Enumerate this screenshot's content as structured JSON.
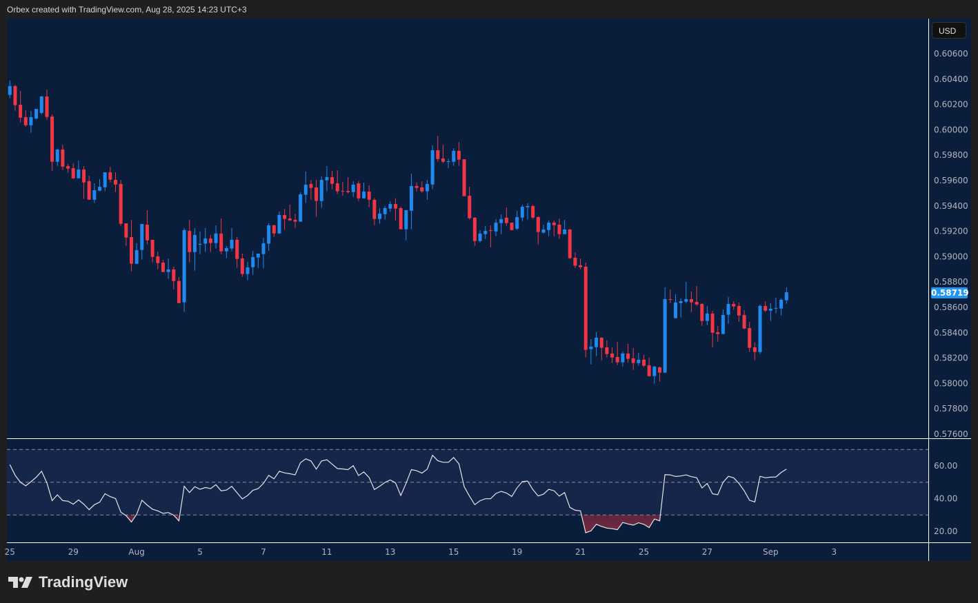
{
  "header": {
    "attribution": "Orbex created with TradingView.com, Aug 28, 2025 14:23 UTC+3"
  },
  "price_axis": {
    "currency": "USD",
    "ticks": [
      "0.60600",
      "0.60400",
      "0.60200",
      "0.60000",
      "0.59800",
      "0.59600",
      "0.59400",
      "0.59200",
      "0.59000",
      "0.58800",
      "0.58600",
      "0.58400",
      "0.58200",
      "0.58000",
      "0.57800",
      "0.57600"
    ],
    "current_price": "0.58719"
  },
  "rsi_axis": {
    "ticks": [
      "60.00",
      "40.00",
      "20.00"
    ]
  },
  "time_axis": {
    "labels": [
      "25",
      "29",
      "Aug",
      "5",
      "7",
      "11",
      "13",
      "15",
      "19",
      "21",
      "25",
      "27",
      "Sep",
      "3"
    ]
  },
  "logo": {
    "text": "TradingView"
  },
  "colors": {
    "up": "#2089ef",
    "down": "#f23645",
    "background": "#0a1e3b",
    "rsi_band": "#16264b",
    "rsi_line": "#e6e6e6",
    "current_price": "#2196f3"
  },
  "chart_data": [
    {
      "type": "candlestick",
      "ylim": [
        0.576,
        0.606
      ],
      "grid": false,
      "fields": [
        "open",
        "high",
        "low",
        "close"
      ],
      "candles": [
        [
          0.60276,
          0.6039,
          0.60248,
          0.60345
        ],
        [
          0.60345,
          0.60354,
          0.60151,
          0.60194
        ],
        [
          0.60198,
          0.60307,
          0.60058,
          0.60096
        ],
        [
          0.601,
          0.60154,
          0.60024,
          0.60036
        ],
        [
          0.60036,
          0.60149,
          0.59977,
          0.601
        ],
        [
          0.60089,
          0.60165,
          0.60084,
          0.60165
        ],
        [
          0.60133,
          0.60268,
          0.60123,
          0.60263
        ],
        [
          0.60263,
          0.60317,
          0.6008,
          0.60102
        ],
        [
          0.60105,
          0.60122,
          0.59678,
          0.59748
        ],
        [
          0.59748,
          0.5985,
          0.59716,
          0.59845
        ],
        [
          0.59845,
          0.59883,
          0.59683,
          0.5971
        ],
        [
          0.59714,
          0.5973,
          0.59661,
          0.59694
        ],
        [
          0.59698,
          0.59737,
          0.59612,
          0.59618
        ],
        [
          0.59618,
          0.59758,
          0.59616,
          0.59687
        ],
        [
          0.59687,
          0.59714,
          0.59455,
          0.59585
        ],
        [
          0.59595,
          0.59638,
          0.59447,
          0.59449
        ],
        [
          0.59449,
          0.59578,
          0.59422,
          0.59524
        ],
        [
          0.5952,
          0.59611,
          0.59515,
          0.59551
        ],
        [
          0.59547,
          0.59665,
          0.59515,
          0.59665
        ],
        [
          0.59665,
          0.59709,
          0.59585,
          0.59607
        ],
        [
          0.59605,
          0.59665,
          0.59509,
          0.59569
        ],
        [
          0.59573,
          0.59605,
          0.59243,
          0.59259
        ],
        [
          0.59263,
          0.59263,
          0.59085,
          0.59151
        ],
        [
          0.59154,
          0.5929,
          0.58884,
          0.58944
        ],
        [
          0.58944,
          0.59105,
          0.58942,
          0.59051
        ],
        [
          0.59053,
          0.59258,
          0.58977,
          0.59258
        ],
        [
          0.59252,
          0.59366,
          0.59096,
          0.59129
        ],
        [
          0.59133,
          0.59133,
          0.58955,
          0.58998
        ],
        [
          0.59002,
          0.5904,
          0.58901,
          0.58949
        ],
        [
          0.58953,
          0.58975,
          0.58877,
          0.58879
        ],
        [
          0.58879,
          0.58986,
          0.58825,
          0.58899
        ],
        [
          0.58899,
          0.58921,
          0.58743,
          0.58808
        ],
        [
          0.58808,
          0.58839,
          0.58632,
          0.58634
        ],
        [
          0.5864,
          0.59225,
          0.58564,
          0.59209
        ],
        [
          0.59203,
          0.5929,
          0.58955,
          0.59036
        ],
        [
          0.59036,
          0.59225,
          0.5889,
          0.59171
        ],
        [
          0.59097,
          0.59198,
          0.5902,
          0.591
        ],
        [
          0.59102,
          0.59225,
          0.59036,
          0.59143
        ],
        [
          0.59143,
          0.59171,
          0.59036,
          0.59107
        ],
        [
          0.59107,
          0.59247,
          0.59064,
          0.59182
        ],
        [
          0.59182,
          0.59301,
          0.5902,
          0.59042
        ],
        [
          0.59042,
          0.59084,
          0.58988,
          0.59067
        ],
        [
          0.59064,
          0.59225,
          0.59042,
          0.59133
        ],
        [
          0.59133,
          0.59154,
          0.58911,
          0.58982
        ],
        [
          0.58986,
          0.59024,
          0.58841,
          0.58863
        ],
        [
          0.58863,
          0.58959,
          0.58814,
          0.58915
        ],
        [
          0.58917,
          0.59046,
          0.58857,
          0.58997
        ],
        [
          0.58993,
          0.59024,
          0.58911,
          0.59024
        ],
        [
          0.5902,
          0.59149,
          0.58906,
          0.59105
        ],
        [
          0.59102,
          0.59263,
          0.59047,
          0.59247
        ],
        [
          0.59247,
          0.59252,
          0.59156,
          0.59183
        ],
        [
          0.59183,
          0.59355,
          0.59178,
          0.59328
        ],
        [
          0.59328,
          0.59377,
          0.5921,
          0.59297
        ],
        [
          0.59301,
          0.5941,
          0.59281,
          0.59286
        ],
        [
          0.5929,
          0.59339,
          0.59227,
          0.59276
        ],
        [
          0.59276,
          0.59508,
          0.59274,
          0.59491
        ],
        [
          0.59488,
          0.59671,
          0.59422,
          0.59567
        ],
        [
          0.59573,
          0.59605,
          0.59449,
          0.59542
        ],
        [
          0.59546,
          0.59605,
          0.59314,
          0.59439
        ],
        [
          0.59439,
          0.59633,
          0.59384,
          0.59605
        ],
        [
          0.59602,
          0.59714,
          0.59515,
          0.59627
        ],
        [
          0.59627,
          0.59676,
          0.59531,
          0.59574
        ],
        [
          0.59578,
          0.59681,
          0.59493,
          0.59515
        ],
        [
          0.59518,
          0.59589,
          0.59482,
          0.59515
        ],
        [
          0.59518,
          0.59627,
          0.59498,
          0.59509
        ],
        [
          0.59509,
          0.59595,
          0.59471,
          0.59567
        ],
        [
          0.59578,
          0.59595,
          0.59439,
          0.5946
        ],
        [
          0.5946,
          0.59584,
          0.59458,
          0.59513
        ],
        [
          0.59513,
          0.59562,
          0.5939,
          0.59449
        ],
        [
          0.59448,
          0.59464,
          0.59248,
          0.59297
        ],
        [
          0.59297,
          0.59383,
          0.59259,
          0.59339
        ],
        [
          0.59335,
          0.59399,
          0.59292,
          0.59383
        ],
        [
          0.59379,
          0.59437,
          0.59352,
          0.59415
        ],
        [
          0.59415,
          0.59459,
          0.59286,
          0.59379
        ],
        [
          0.59383,
          0.59393,
          0.59214,
          0.59216
        ],
        [
          0.59216,
          0.59366,
          0.59129,
          0.59366
        ],
        [
          0.59362,
          0.59654,
          0.59216,
          0.59557
        ],
        [
          0.59557,
          0.59584,
          0.59515,
          0.59542
        ],
        [
          0.59546,
          0.59595,
          0.59504,
          0.59515
        ],
        [
          0.59515,
          0.59605,
          0.59449,
          0.59573
        ],
        [
          0.59569,
          0.59877,
          0.59531,
          0.59839
        ],
        [
          0.59839,
          0.59953,
          0.59748,
          0.5977
        ],
        [
          0.59774,
          0.59883,
          0.59737,
          0.59748
        ],
        [
          0.59749,
          0.59774,
          0.59699,
          0.59752
        ],
        [
          0.59748,
          0.59855,
          0.59716,
          0.59834
        ],
        [
          0.59834,
          0.59904,
          0.59716,
          0.59765
        ],
        [
          0.59768,
          0.59768,
          0.59475,
          0.59477
        ],
        [
          0.5948,
          0.59551,
          0.59292,
          0.59303
        ],
        [
          0.59307,
          0.59312,
          0.59085,
          0.59123
        ],
        [
          0.59123,
          0.59209,
          0.59112,
          0.59182
        ],
        [
          0.59178,
          0.59241,
          0.5914,
          0.59203
        ],
        [
          0.59209,
          0.59247,
          0.59074,
          0.59205
        ],
        [
          0.59199,
          0.59296,
          0.59161,
          0.59268
        ],
        [
          0.59265,
          0.59334,
          0.59178,
          0.59296
        ],
        [
          0.59307,
          0.59388,
          0.59243,
          0.59265
        ],
        [
          0.59268,
          0.5927,
          0.59205,
          0.5921
        ],
        [
          0.59221,
          0.59361,
          0.5921,
          0.59312
        ],
        [
          0.59308,
          0.5941,
          0.59281,
          0.59393
        ],
        [
          0.5939,
          0.59421,
          0.59292,
          0.59399
        ],
        [
          0.59399,
          0.5941,
          0.59297,
          0.59308
        ],
        [
          0.59312,
          0.59317,
          0.59096,
          0.59194
        ],
        [
          0.59189,
          0.59252,
          0.59183,
          0.59214
        ],
        [
          0.5921,
          0.59285,
          0.59161,
          0.59268
        ],
        [
          0.59268,
          0.59285,
          0.59161,
          0.59248
        ],
        [
          0.59252,
          0.59301,
          0.5914,
          0.59178
        ],
        [
          0.59178,
          0.5929,
          0.59176,
          0.59214
        ],
        [
          0.59214,
          0.5922,
          0.58982,
          0.58988
        ],
        [
          0.58991,
          0.59035,
          0.58911,
          0.58928
        ],
        [
          0.58932,
          0.58986,
          0.58901,
          0.58917
        ],
        [
          0.58921,
          0.58953,
          0.58205,
          0.58265
        ],
        [
          0.5827,
          0.5835,
          0.5815,
          0.5829
        ],
        [
          0.58286,
          0.58404,
          0.58216,
          0.58361
        ],
        [
          0.58361,
          0.58366,
          0.58183,
          0.58281
        ],
        [
          0.58285,
          0.58339,
          0.58205,
          0.58232
        ],
        [
          0.58236,
          0.58285,
          0.58161,
          0.58205
        ],
        [
          0.58209,
          0.58328,
          0.58145,
          0.58167
        ],
        [
          0.58167,
          0.58252,
          0.58134,
          0.58236
        ],
        [
          0.58236,
          0.58312,
          0.58165,
          0.58194
        ],
        [
          0.58198,
          0.58279,
          0.58107,
          0.58161
        ],
        [
          0.58161,
          0.58241,
          0.5814,
          0.58187
        ],
        [
          0.58187,
          0.58225,
          0.58129,
          0.5814
        ],
        [
          0.58143,
          0.58203,
          0.58053,
          0.58058
        ],
        [
          0.58058,
          0.58138,
          0.57998,
          0.58133
        ],
        [
          0.58127,
          0.58133,
          0.58015,
          0.58085
        ],
        [
          0.58085,
          0.58758,
          0.58083,
          0.58665
        ],
        [
          0.58665,
          0.58741,
          0.58634,
          0.58661
        ],
        [
          0.58515,
          0.58703,
          0.58513,
          0.58638
        ],
        [
          0.58634,
          0.58671,
          0.5852,
          0.58649
        ],
        [
          0.58645,
          0.58801,
          0.58634,
          0.58665
        ],
        [
          0.58665,
          0.58725,
          0.58564,
          0.5864
        ],
        [
          0.58643,
          0.58768,
          0.58612,
          0.58623
        ],
        [
          0.58627,
          0.58633,
          0.58455,
          0.58493
        ],
        [
          0.58493,
          0.58611,
          0.5846,
          0.58551
        ],
        [
          0.58551,
          0.58573,
          0.58286,
          0.584
        ],
        [
          0.58404,
          0.58453,
          0.5833,
          0.5839
        ],
        [
          0.5839,
          0.58584,
          0.58388,
          0.5854
        ],
        [
          0.58542,
          0.58681,
          0.58471,
          0.58627
        ],
        [
          0.58627,
          0.58649,
          0.5858,
          0.58607
        ],
        [
          0.58611,
          0.58638,
          0.58487,
          0.58536
        ],
        [
          0.5854,
          0.58578,
          0.58428,
          0.58433
        ],
        [
          0.58437,
          0.58486,
          0.58248,
          0.58281
        ],
        [
          0.58285,
          0.58323,
          0.58183,
          0.58248
        ],
        [
          0.58248,
          0.58622,
          0.58232,
          0.58611
        ],
        [
          0.58611,
          0.58649,
          0.58564,
          0.58574
        ],
        [
          0.58574,
          0.58633,
          0.58493,
          0.58589
        ],
        [
          0.58591,
          0.58676,
          0.58553,
          0.58595
        ],
        [
          0.58591,
          0.58671,
          0.58536,
          0.5866
        ],
        [
          0.58656,
          0.58758,
          0.58629,
          0.58719
        ]
      ]
    },
    {
      "type": "line",
      "ylim": [
        15,
        80
      ],
      "levels": [
        70,
        50,
        30
      ],
      "values": [
        60.8,
        54.2,
        50.0,
        47.8,
        50.3,
        53.1,
        56.7,
        49.7,
        38.8,
        42.3,
        38.8,
        38.4,
        36.6,
        39.2,
        36.6,
        33.2,
        36.3,
        37.8,
        43.0,
        41.2,
        40.1,
        31.7,
        29.6,
        25.7,
        30.4,
        39.0,
        36.0,
        33.5,
        32.5,
        31.0,
        31.5,
        29.9,
        26.4,
        47.6,
        43.7,
        47.3,
        45.7,
        46.8,
        46.1,
        48.5,
        44.7,
        45.2,
        47.5,
        43.6,
        39.8,
        41.9,
        45.1,
        46.1,
        49.3,
        54.2,
        52.1,
        56.7,
        55.7,
        55.2,
        54.5,
        61.9,
        64.3,
        63.0,
        58.0,
        63.0,
        63.7,
        61.0,
        58.3,
        58.1,
        57.7,
        60.1,
        54.1,
        56.3,
        52.9,
        45.5,
        47.6,
        49.9,
        51.4,
        49.6,
        41.9,
        49.4,
        57.7,
        57.0,
        55.6,
        58.0,
        66.5,
        63.1,
        62.2,
        62.2,
        65.1,
        61.2,
        47.2,
        41.5,
        36.3,
        38.7,
        39.9,
        39.9,
        43.1,
        44.4,
        43.4,
        41.3,
        46.6,
        50.4,
        50.7,
        45.5,
        41.6,
        42.7,
        45.7,
        44.8,
        41.5,
        43.7,
        34.6,
        32.9,
        32.5,
        19.1,
        20.3,
        24.3,
        23.0,
        22.0,
        21.6,
        21.0,
        25.4,
        24.5,
        23.8,
        25.2,
        24.3,
        22.3,
        27.5,
        26.4,
        54.6,
        54.5,
        53.5,
        53.8,
        54.5,
        53.4,
        52.8,
        46.5,
        49.2,
        42.9,
        42.4,
        50.0,
        53.6,
        52.7,
        49.3,
        44.8,
        39.0,
        38.0,
        53.6,
        52.7,
        53.1,
        53.2,
        56.0,
        58.0
      ]
    }
  ]
}
